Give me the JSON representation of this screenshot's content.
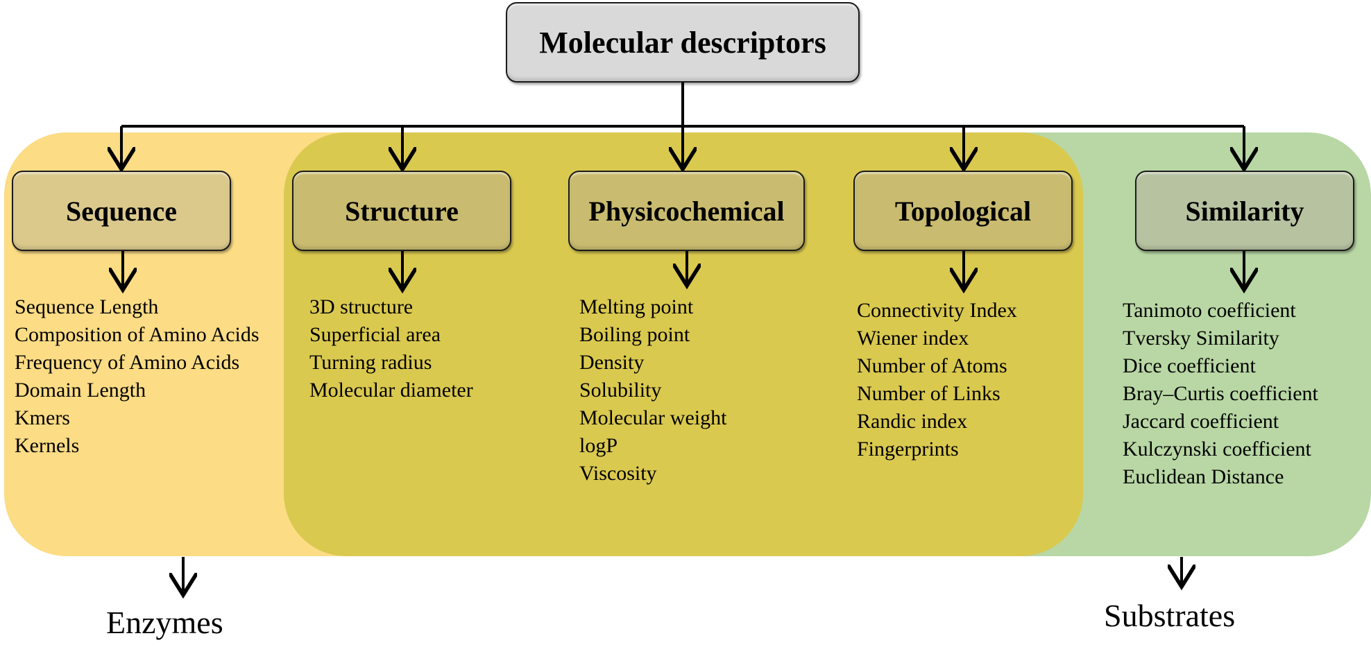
{
  "root": {
    "label": "Molecular descriptors"
  },
  "categories": [
    {
      "label": "Sequence",
      "items": [
        "Sequence Length",
        "Composition of Amino Acids",
        "Frequency of Amino Acids",
        "Domain Length",
        "Kmers",
        "Kernels"
      ]
    },
    {
      "label": "Structure",
      "items": [
        "3D structure",
        "Superficial area",
        "Turning radius",
        "Molecular diameter"
      ]
    },
    {
      "label": "Physicochemical",
      "items": [
        "Melting point",
        "Boiling point",
        "Density",
        "Solubility",
        "Molecular weight",
        "logP",
        "Viscosity"
      ]
    },
    {
      "label": "Topological",
      "items": [
        "Connectivity Index",
        "Wiener index",
        "Number of Atoms",
        "Number of Links",
        "Randic index",
        "Fingerprints"
      ]
    },
    {
      "label": "Similarity",
      "items": [
        "Tanimoto coefficient",
        "Tversky Similarity",
        "Dice coefficient",
        "Bray–Curtis coefficient",
        "Jaccard coefficient",
        "Kulczynski coefficient",
        "Euclidean Distance"
      ]
    }
  ],
  "targets": {
    "enzymes": "Enzymes",
    "substrates": "Substrates"
  },
  "colors": {
    "enzymes_region": "#fcdc84",
    "shared_region": "#dac94f",
    "substrates_region": "#b8d7a4",
    "root_box": "#d9d9d9",
    "connector": "#000000"
  }
}
